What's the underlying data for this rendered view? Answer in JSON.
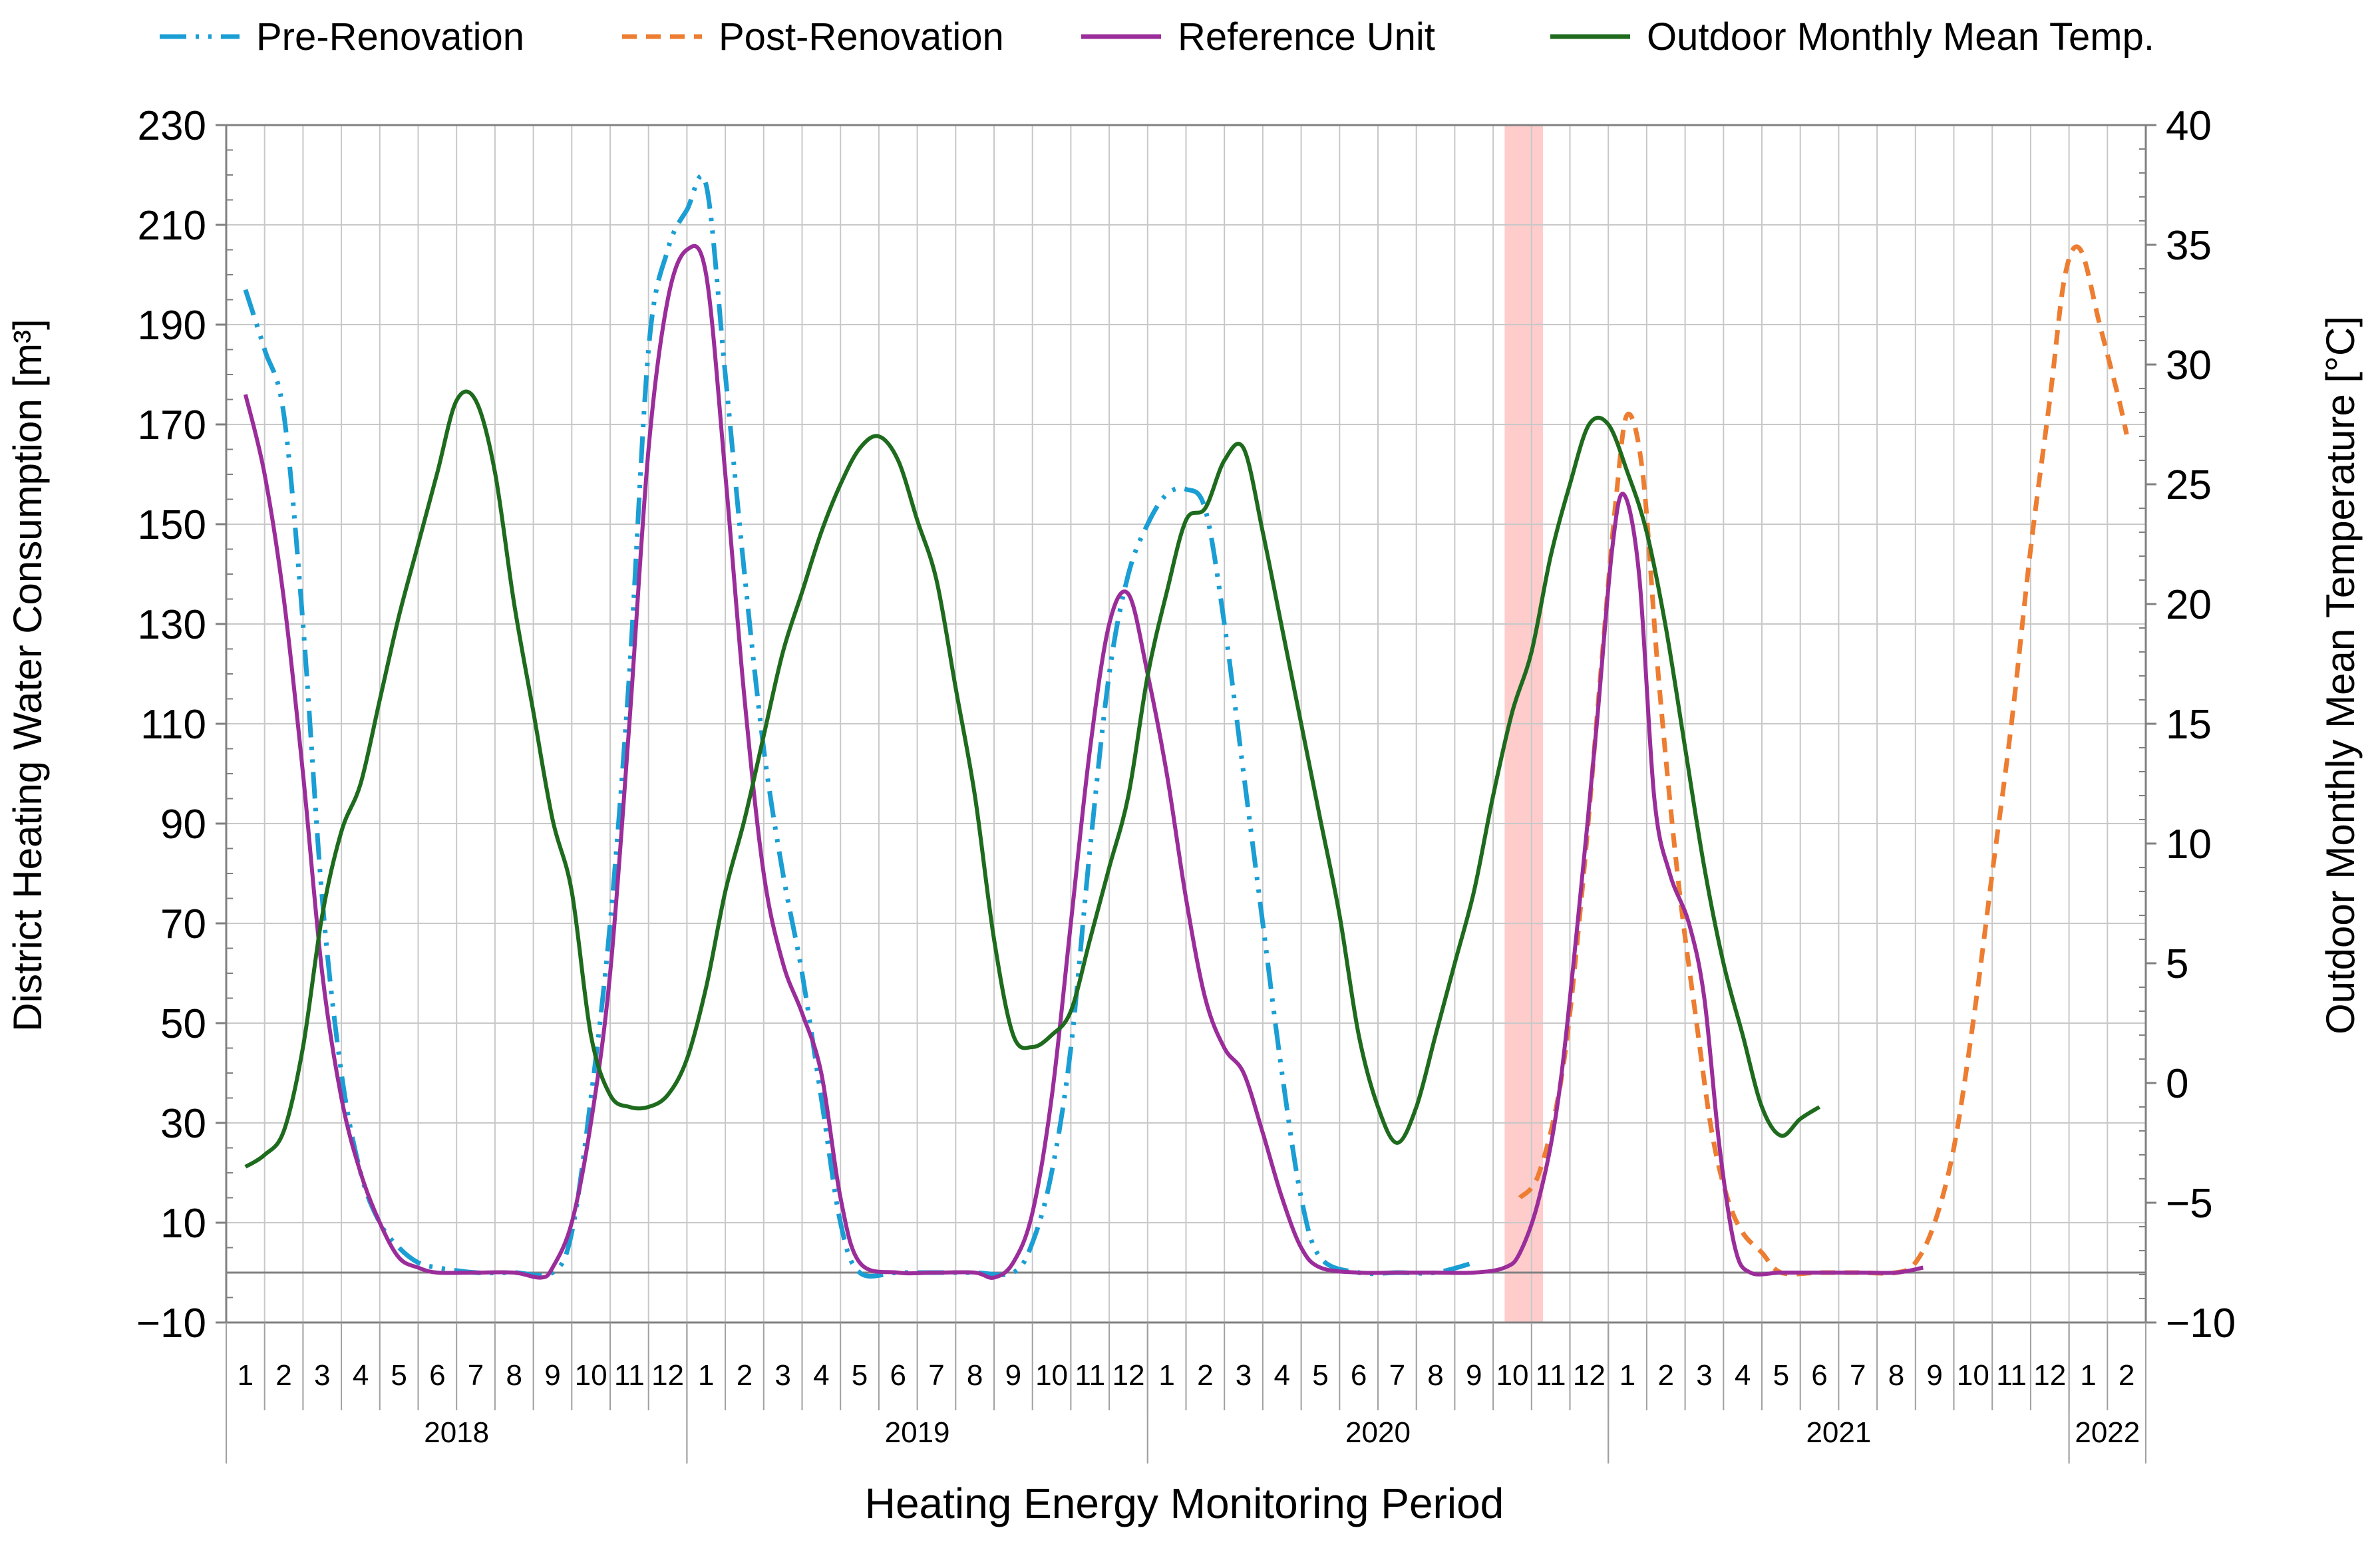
{
  "chart_data": {
    "type": "line",
    "xlabel": "Heating Energy Monitoring Period",
    "ylabel": "District Heating Water Consumption [m³]",
    "y2label": "Outdoor Monthly Mean Temperature [°C]",
    "ylim": [
      -10,
      230
    ],
    "y_ticks": [
      "230",
      "210",
      "190",
      "170",
      "150",
      "130",
      "110",
      "90",
      "70",
      "50",
      "30",
      "10",
      "−10"
    ],
    "y2lim": [
      -10,
      40
    ],
    "y2_ticks": [
      "40",
      "35",
      "30",
      "25",
      "20",
      "15",
      "10",
      "5",
      "0",
      "−5",
      "−10"
    ],
    "x_range": [
      0.5,
      50.5
    ],
    "month_labels": [
      "1",
      "2",
      "3",
      "4",
      "5",
      "6",
      "7",
      "8",
      "9",
      "10",
      "11",
      "12",
      "1",
      "2",
      "3",
      "4",
      "5",
      "6",
      "7",
      "8",
      "9",
      "10",
      "11",
      "12",
      "1",
      "2",
      "3",
      "4",
      "5",
      "6",
      "7",
      "8",
      "9",
      "10",
      "11",
      "12",
      "1",
      "2",
      "3",
      "4",
      "5",
      "6",
      "7",
      "8",
      "9",
      "10",
      "11",
      "12",
      "1",
      "2"
    ],
    "years": [
      {
        "label": "2018",
        "start": 1,
        "end": 12
      },
      {
        "label": "2019",
        "start": 13,
        "end": 24
      },
      {
        "label": "2020",
        "start": 25,
        "end": 36
      },
      {
        "label": "2021",
        "start": 37,
        "end": 48
      },
      {
        "label": "2022",
        "start": 49,
        "end": 50
      }
    ],
    "highlight": {
      "start": 33.8,
      "end": 34.8,
      "color": "#ffcccc"
    },
    "zero_line": 0,
    "legend_position": "top",
    "series": [
      {
        "name": "Pre-Renovation",
        "axis": "left",
        "color": "#1a9ed4",
        "dash": "dashdotdot",
        "points": [
          [
            1,
            197
          ],
          [
            1.5,
            185
          ],
          [
            2,
            172
          ],
          [
            2.5,
            130
          ],
          [
            3,
            75
          ],
          [
            3.5,
            40
          ],
          [
            4,
            20
          ],
          [
            4.5,
            10
          ],
          [
            5,
            5
          ],
          [
            5.5,
            2
          ],
          [
            6,
            1
          ],
          [
            7,
            0
          ],
          [
            8,
            0
          ],
          [
            9,
            0
          ],
          [
            9.5,
            8
          ],
          [
            10,
            35
          ],
          [
            10.5,
            70
          ],
          [
            11,
            120
          ],
          [
            11.5,
            185
          ],
          [
            12,
            205
          ],
          [
            12.5,
            213
          ],
          [
            13,
            218
          ],
          [
            13.5,
            180
          ],
          [
            14,
            140
          ],
          [
            14.5,
            105
          ],
          [
            15,
            80
          ],
          [
            15.5,
            60
          ],
          [
            16,
            35
          ],
          [
            16.5,
            10
          ],
          [
            17,
            0
          ],
          [
            18,
            0
          ],
          [
            19,
            0
          ],
          [
            20,
            0
          ],
          [
            21,
            0
          ],
          [
            21.5,
            6
          ],
          [
            22,
            20
          ],
          [
            22.5,
            45
          ],
          [
            23,
            85
          ],
          [
            23.5,
            120
          ],
          [
            24,
            140
          ],
          [
            24.5,
            150
          ],
          [
            25,
            156
          ],
          [
            25.5,
            157
          ],
          [
            26,
            153
          ],
          [
            26.5,
            130
          ],
          [
            27,
            100
          ],
          [
            27.5,
            70
          ],
          [
            28,
            40
          ],
          [
            28.5,
            15
          ],
          [
            29,
            3
          ],
          [
            30,
            0
          ],
          [
            31,
            0
          ],
          [
            32,
            0
          ],
          [
            33,
            2
          ]
        ]
      },
      {
        "name": "Post-Renovation",
        "axis": "left",
        "color": "#ed7d31",
        "dash": "dash",
        "points": [
          [
            34.2,
            15
          ],
          [
            34.7,
            20
          ],
          [
            35.3,
            40
          ],
          [
            35.8,
            75
          ],
          [
            36.3,
            120
          ],
          [
            36.7,
            155
          ],
          [
            37,
            172
          ],
          [
            37.4,
            160
          ],
          [
            37.8,
            120
          ],
          [
            38.3,
            80
          ],
          [
            38.8,
            50
          ],
          [
            39.2,
            28
          ],
          [
            39.6,
            15
          ],
          [
            40,
            8
          ],
          [
            40.5,
            4
          ],
          [
            41,
            0
          ],
          [
            42,
            0
          ],
          [
            43,
            0
          ],
          [
            44,
            0
          ],
          [
            44.5,
            2
          ],
          [
            45,
            10
          ],
          [
            45.5,
            25
          ],
          [
            46,
            50
          ],
          [
            46.5,
            80
          ],
          [
            47,
            110
          ],
          [
            47.5,
            145
          ],
          [
            48,
            175
          ],
          [
            48.4,
            200
          ],
          [
            48.8,
            205
          ],
          [
            49.3,
            190
          ],
          [
            49.8,
            175
          ],
          [
            50,
            168
          ]
        ]
      },
      {
        "name": "Reference Unit",
        "axis": "left",
        "color": "#9b2d9b",
        "dash": "solid",
        "points": [
          [
            1,
            176
          ],
          [
            1.5,
            160
          ],
          [
            2,
            135
          ],
          [
            2.5,
            100
          ],
          [
            3,
            60
          ],
          [
            3.5,
            35
          ],
          [
            4,
            20
          ],
          [
            4.5,
            10
          ],
          [
            5,
            3
          ],
          [
            5.5,
            1
          ],
          [
            6,
            0
          ],
          [
            7,
            0
          ],
          [
            8,
            0
          ],
          [
            8.7,
            -1
          ],
          [
            9,
            1
          ],
          [
            9.5,
            10
          ],
          [
            10,
            30
          ],
          [
            10.5,
            60
          ],
          [
            11,
            110
          ],
          [
            11.5,
            165
          ],
          [
            12,
            195
          ],
          [
            12.5,
            205
          ],
          [
            13,
            200
          ],
          [
            13.5,
            160
          ],
          [
            14,
            115
          ],
          [
            14.5,
            80
          ],
          [
            15,
            62
          ],
          [
            15.5,
            52
          ],
          [
            16,
            40
          ],
          [
            16.5,
            15
          ],
          [
            17,
            2
          ],
          [
            18,
            0
          ],
          [
            19,
            0
          ],
          [
            20,
            0
          ],
          [
            20.5,
            -1
          ],
          [
            21,
            2
          ],
          [
            21.5,
            12
          ],
          [
            22,
            35
          ],
          [
            22.5,
            70
          ],
          [
            23,
            105
          ],
          [
            23.5,
            130
          ],
          [
            24,
            136
          ],
          [
            24.5,
            120
          ],
          [
            25,
            100
          ],
          [
            25.5,
            75
          ],
          [
            26,
            55
          ],
          [
            26.5,
            45
          ],
          [
            27,
            40
          ],
          [
            27.5,
            28
          ],
          [
            28,
            15
          ],
          [
            28.5,
            5
          ],
          [
            29,
            1
          ],
          [
            30,
            0
          ],
          [
            31,
            0
          ],
          [
            32,
            0
          ],
          [
            33,
            0
          ],
          [
            33.8,
            1
          ],
          [
            34.2,
            4
          ],
          [
            34.7,
            15
          ],
          [
            35.2,
            35
          ],
          [
            35.7,
            70
          ],
          [
            36.2,
            110
          ],
          [
            36.6,
            145
          ],
          [
            36.9,
            156
          ],
          [
            37.3,
            140
          ],
          [
            37.7,
            95
          ],
          [
            38.1,
            80
          ],
          [
            38.6,
            70
          ],
          [
            39,
            55
          ],
          [
            39.4,
            25
          ],
          [
            39.8,
            5
          ],
          [
            40.2,
            0
          ],
          [
            41,
            0
          ],
          [
            42,
            0
          ],
          [
            43,
            0
          ],
          [
            44,
            0
          ],
          [
            44.7,
            1
          ]
        ]
      },
      {
        "name": "Outdoor Monthly Mean Temp.",
        "axis": "right",
        "color": "#1e6b1e",
        "dash": "solid",
        "points": [
          [
            1,
            -3.5
          ],
          [
            1.5,
            -3
          ],
          [
            2,
            -2
          ],
          [
            2.5,
            1.5
          ],
          [
            3,
            7
          ],
          [
            3.5,
            10.5
          ],
          [
            4,
            12.5
          ],
          [
            4.5,
            16
          ],
          [
            5,
            19.5
          ],
          [
            5.5,
            22.5
          ],
          [
            6,
            25.5
          ],
          [
            6.5,
            28.5
          ],
          [
            7,
            28.5
          ],
          [
            7.5,
            25.5
          ],
          [
            8,
            20
          ],
          [
            8.5,
            15.5
          ],
          [
            9,
            11
          ],
          [
            9.5,
            8
          ],
          [
            10,
            2
          ],
          [
            10.5,
            -0.5
          ],
          [
            11,
            -1
          ],
          [
            11.5,
            -1
          ],
          [
            12,
            -0.5
          ],
          [
            12.5,
            1
          ],
          [
            13,
            4
          ],
          [
            13.5,
            8
          ],
          [
            14,
            11
          ],
          [
            14.5,
            14.5
          ],
          [
            15,
            18
          ],
          [
            15.5,
            20.5
          ],
          [
            16,
            23
          ],
          [
            16.5,
            25
          ],
          [
            17,
            26.5
          ],
          [
            17.5,
            27
          ],
          [
            18,
            26
          ],
          [
            18.5,
            23.5
          ],
          [
            19,
            21
          ],
          [
            19.5,
            16.5
          ],
          [
            20,
            12
          ],
          [
            20.5,
            6
          ],
          [
            21,
            2
          ],
          [
            21.5,
            1.5
          ],
          [
            22,
            2
          ],
          [
            22.5,
            3
          ],
          [
            23,
            6
          ],
          [
            23.5,
            9
          ],
          [
            24,
            12
          ],
          [
            24.5,
            17
          ],
          [
            25,
            20.5
          ],
          [
            25.5,
            23.5
          ],
          [
            26,
            24
          ],
          [
            26.5,
            26
          ],
          [
            27,
            26.5
          ],
          [
            27.5,
            23
          ],
          [
            28,
            19
          ],
          [
            28.5,
            15
          ],
          [
            29,
            11
          ],
          [
            29.5,
            7
          ],
          [
            30,
            2
          ],
          [
            30.5,
            -1
          ],
          [
            31,
            -2.5
          ],
          [
            31.5,
            -1
          ],
          [
            32,
            2
          ],
          [
            32.5,
            5
          ],
          [
            33,
            8
          ],
          [
            33.5,
            12
          ],
          [
            34,
            15.5
          ],
          [
            34.5,
            18
          ],
          [
            35,
            22
          ],
          [
            35.5,
            25
          ],
          [
            36,
            27.5
          ],
          [
            36.5,
            27.5
          ],
          [
            37,
            25.5
          ],
          [
            37.5,
            23
          ],
          [
            38,
            19
          ],
          [
            38.5,
            14
          ],
          [
            39,
            9
          ],
          [
            39.5,
            5
          ],
          [
            40,
            2
          ],
          [
            40.5,
            -1
          ],
          [
            41,
            -2.2
          ],
          [
            41.5,
            -1.5
          ],
          [
            42,
            -1
          ]
        ]
      }
    ]
  },
  "legend": {
    "items": [
      {
        "label": "Pre-Renovation",
        "color": "#1a9ed4",
        "dash": "dashdotdot"
      },
      {
        "label": "Post-Renovation",
        "color": "#ed7d31",
        "dash": "dash"
      },
      {
        "label": "Reference Unit",
        "color": "#9b2d9b",
        "dash": "solid"
      },
      {
        "label": "Outdoor Monthly Mean Temp.",
        "color": "#1e6b1e",
        "dash": "solid"
      }
    ]
  }
}
